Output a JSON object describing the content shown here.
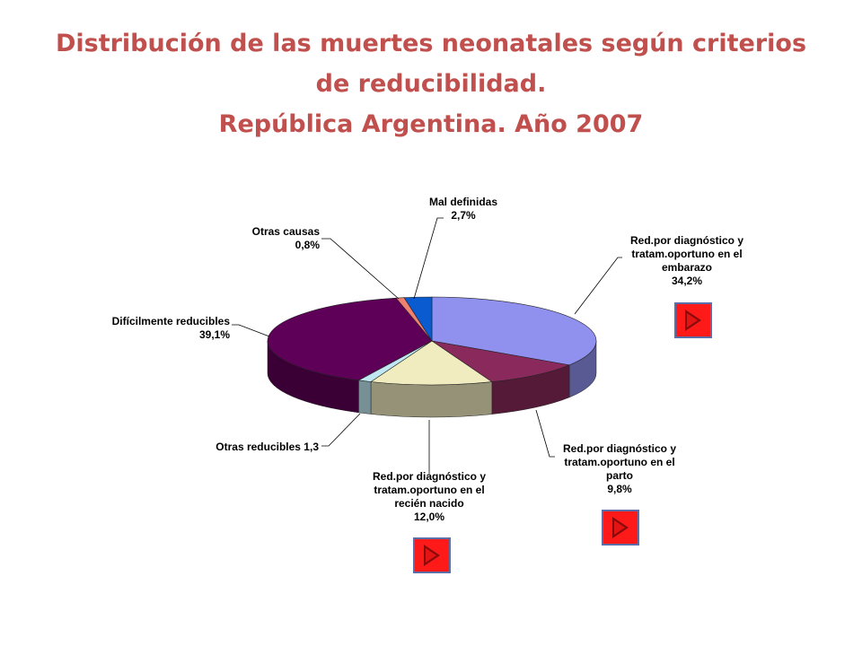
{
  "title": {
    "line1": "Distribución de las muertes neonatales según criterios",
    "line2": "de reducibilidad.",
    "line3": "República Argentina. Año 2007"
  },
  "chart_data": {
    "type": "pie",
    "three_d": true,
    "title": "Distribución de las muertes neonatales según criterios de reducibilidad. República Argentina. Año 2007",
    "legend": "none",
    "slices": [
      {
        "label_lines": [
          "Red.por diagnóstico y",
          "tratam.oportuno en el",
          "embarazo",
          "34,2%"
        ],
        "value": 34.2,
        "color": "#9090ee"
      },
      {
        "label_lines": [
          "Red.por diagnóstico y",
          "tratam.oportuno en el",
          "parto",
          "9,8%"
        ],
        "value": 9.8,
        "color": "#8a2a5c"
      },
      {
        "label_lines": [
          "Red.por diagnóstico y",
          "tratam.oportuno en el",
          "recién nacido",
          "12,0%"
        ],
        "value": 12.0,
        "color": "#f0ecc0"
      },
      {
        "label_lines": [
          "Otras reducibles 1,3"
        ],
        "value": 1.3,
        "color": "#bfe8f2"
      },
      {
        "label_lines": [
          "Difícilmente reducibles",
          "39,1%"
        ],
        "value": 39.1,
        "color": "#5e0057"
      },
      {
        "label_lines": [
          "Otras causas",
          "0,8%"
        ],
        "value": 0.8,
        "color": "#f08070"
      },
      {
        "label_lines": [
          "Mal definidas",
          "2,7%"
        ],
        "value": 2.7,
        "color": "#0a5ad0"
      }
    ]
  },
  "nav_buttons": [
    {
      "target": "embarazo"
    },
    {
      "target": "parto"
    },
    {
      "target": "recien-nacido"
    }
  ],
  "colors": {
    "title": "#c0504d",
    "button_fill": "#ff1a1a",
    "button_border": "#5a6ea8"
  }
}
